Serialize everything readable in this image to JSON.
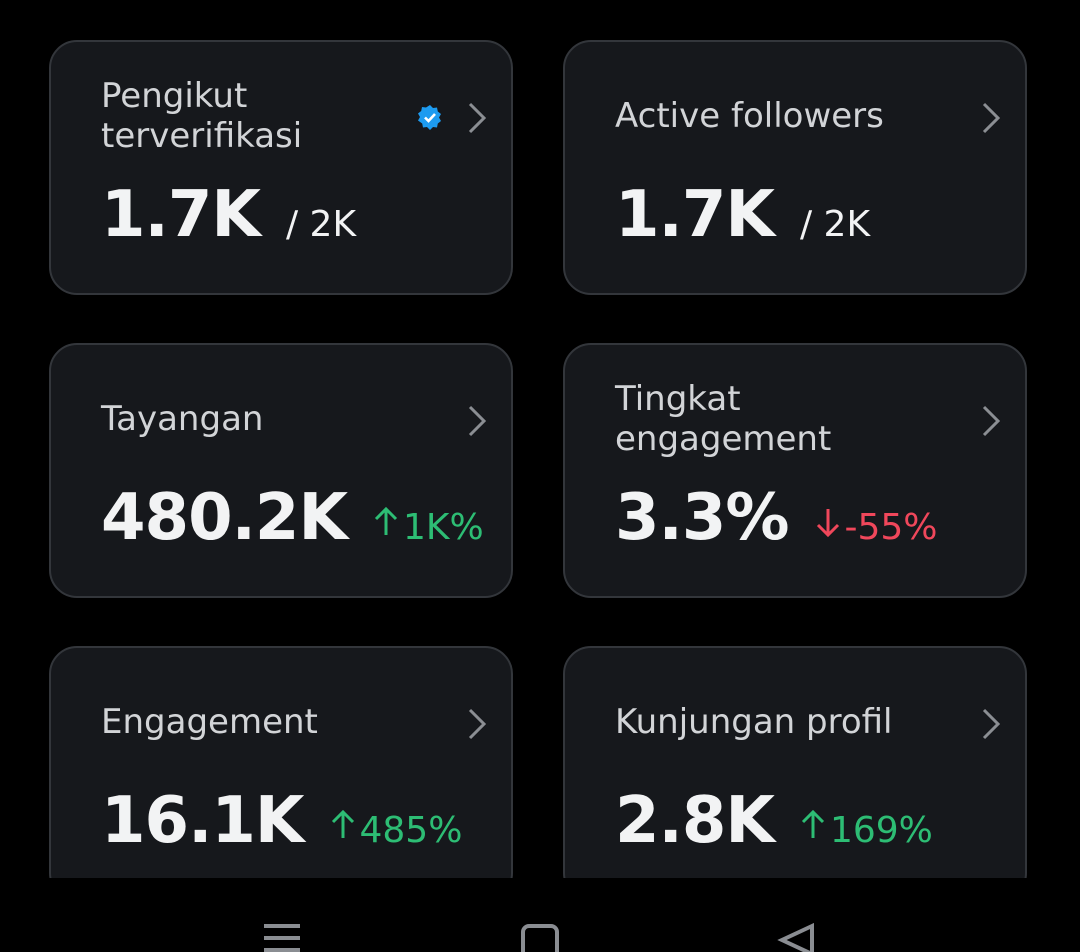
{
  "cards": [
    {
      "title": "Pengikut terverifikasi",
      "verified": true,
      "value": "1.7K",
      "total": "/ 2K"
    },
    {
      "title": "Active followers",
      "value": "1.7K",
      "total": "/ 2K"
    },
    {
      "title": "Tayangan",
      "value": "480.2K",
      "change": "1K%",
      "trend": "up"
    },
    {
      "title": "Tingkat engagement",
      "value": "3.3%",
      "change": "-55%",
      "trend": "down"
    },
    {
      "title": "Engagement",
      "value": "16.1K",
      "change": "485%",
      "trend": "up"
    },
    {
      "title": "Kunjungan profil",
      "value": "2.8K",
      "change": "169%",
      "trend": "up"
    }
  ]
}
